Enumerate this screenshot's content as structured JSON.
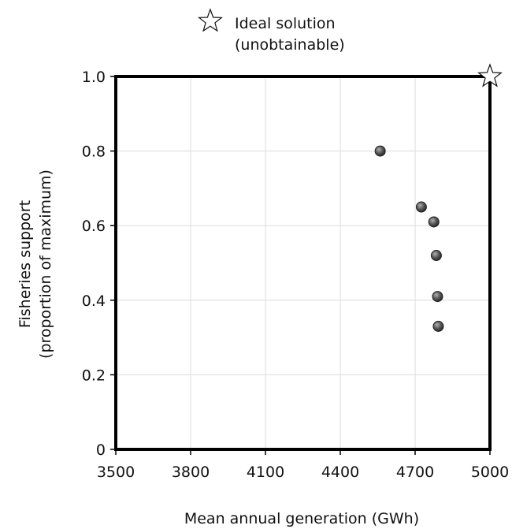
{
  "chart_data": {
    "type": "scatter",
    "xlabel": "Mean annual generation (GWh)",
    "ylabel_lines": [
      "Fisheries support",
      "(proportion of maximum)"
    ],
    "xlim": [
      3500,
      5000
    ],
    "ylim": [
      0,
      1
    ],
    "x_ticks": [
      {
        "value": 3500,
        "label": "3500"
      },
      {
        "value": 3800,
        "label": "3800"
      },
      {
        "value": 4100,
        "label": "4100"
      },
      {
        "value": 4400,
        "label": "4400"
      },
      {
        "value": 4700,
        "label": "4700"
      },
      {
        "value": 5000,
        "label": "5000"
      }
    ],
    "y_ticks": [
      {
        "value": 0,
        "label": "0"
      },
      {
        "value": 0.2,
        "label": "0.2"
      },
      {
        "value": 0.4,
        "label": "0.4"
      },
      {
        "value": 0.6,
        "label": "0.6"
      },
      {
        "value": 0.8,
        "label": "0.8"
      },
      {
        "value": 1.0,
        "label": "1.0"
      }
    ],
    "grid": true,
    "series": [
      {
        "marker": "circle",
        "color": "#5a5a5a",
        "points": [
          {
            "x": 4560,
            "y": 0.8
          },
          {
            "x": 4725,
            "y": 0.65
          },
          {
            "x": 4775,
            "y": 0.61
          },
          {
            "x": 4785,
            "y": 0.52
          },
          {
            "x": 4790,
            "y": 0.41
          },
          {
            "x": 4793,
            "y": 0.33
          }
        ]
      }
    ],
    "ideal_point": {
      "x": 5000,
      "y": 1.0,
      "marker": "star"
    },
    "legend": {
      "placement": "top-center",
      "marker": "star",
      "lines": [
        "Ideal solution",
        "(unobtainable)"
      ]
    }
  }
}
